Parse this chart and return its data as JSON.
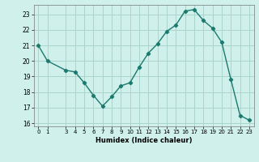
{
  "x": [
    0,
    1,
    3,
    4,
    5,
    6,
    7,
    8,
    9,
    10,
    11,
    12,
    13,
    14,
    15,
    16,
    17,
    18,
    19,
    20,
    21,
    22,
    23
  ],
  "y": [
    21.0,
    20.0,
    19.4,
    19.3,
    18.6,
    17.8,
    17.1,
    17.7,
    18.4,
    18.6,
    19.6,
    20.5,
    21.1,
    21.9,
    22.3,
    23.2,
    23.3,
    22.6,
    22.1,
    21.2,
    18.8,
    16.5,
    16.2
  ],
  "xlabel": "Humidex (Indice chaleur)",
  "line_color": "#1a7a6e",
  "bg_color": "#cff0eb",
  "grid_color": "#aad4cd",
  "ylim": [
    15.8,
    23.6
  ],
  "yticks": [
    16,
    17,
    18,
    19,
    20,
    21,
    22,
    23
  ],
  "xticks": [
    0,
    1,
    3,
    4,
    5,
    6,
    7,
    8,
    9,
    10,
    11,
    12,
    13,
    14,
    15,
    16,
    17,
    18,
    19,
    20,
    21,
    22,
    23
  ],
  "xlim": [
    -0.5,
    23.5
  ]
}
